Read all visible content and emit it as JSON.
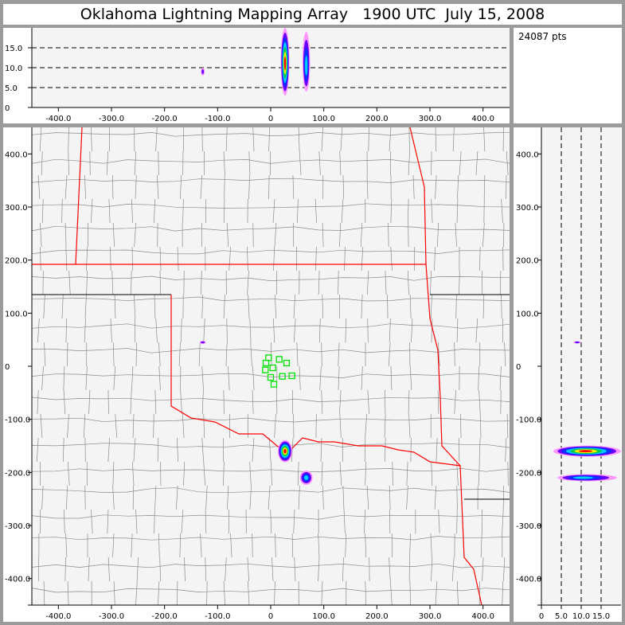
{
  "title": "Oklahoma Lightning Mapping Array   1900 UTC  July 15, 2008",
  "points_label": "24087 pts",
  "chart_data": [
    {
      "type": "scatter",
      "panel": "altitude-vs-east",
      "xlim": [
        -450,
        450
      ],
      "ylim": [
        0,
        20
      ],
      "xticks": [
        "-400.0",
        "-300.0",
        "-200.0",
        "-100.0",
        "0",
        "100.0",
        "200.0",
        "300.0",
        "400.0"
      ],
      "yticks": [
        "0",
        "5.0",
        "10.0",
        "15.0"
      ],
      "grid": "dashed at 5, 10, 15"
    },
    {
      "type": "scatter",
      "panel": "plan-view-map",
      "xlim": [
        -450,
        450
      ],
      "ylim": [
        -450,
        450
      ],
      "xticks": [
        "-400.0",
        "-300.0",
        "-200.0",
        "-100.0",
        "0",
        "100.0",
        "200.0",
        "300.0",
        "400.0"
      ],
      "yticks": [
        "-400.0",
        "-300.0",
        "-200.0",
        "-100.0",
        "0",
        "100.0",
        "200.0",
        "300.0",
        "400.0"
      ],
      "stations": [
        [
          -4,
          16
        ],
        [
          16,
          13
        ],
        [
          30,
          6
        ],
        [
          -9,
          6
        ],
        [
          4,
          -3
        ],
        [
          -10,
          -7
        ],
        [
          22,
          -19
        ],
        [
          40,
          -18
        ],
        [
          0,
          -21
        ],
        [
          6,
          -34
        ]
      ],
      "station_color": "#00e000",
      "border_color": "#ff0000",
      "county_color": "#888888"
    },
    {
      "type": "scatter",
      "panel": "north-vs-altitude",
      "xlim": [
        0,
        20
      ],
      "ylim": [
        -450,
        450
      ],
      "xticks": [
        "0",
        "5.0",
        "10.0",
        "15.0"
      ],
      "yticks": [
        "-400.0",
        "-300.0",
        "-200.0",
        "-100.0",
        "0",
        "100.0",
        "200.0",
        "300.0",
        "400.0"
      ],
      "grid": "dashed at 5, 10, 15"
    }
  ],
  "clusters": [
    {
      "x": 27,
      "y": -160,
      "sx": 9,
      "sy": 14,
      "z": 11,
      "sz": 8,
      "zmin": 3,
      "zmax": 20,
      "intensity": 6
    },
    {
      "x": 67,
      "y": -210,
      "sx": 8,
      "sy": 9,
      "z": 10,
      "sz": 6,
      "zmin": 4,
      "zmax": 19,
      "intensity": 3
    },
    {
      "x": -128,
      "y": 45,
      "sx": 4,
      "sy": 2,
      "z": 9,
      "sz": 1.5,
      "zmin": 8,
      "zmax": 10,
      "intensity": 1
    }
  ],
  "density_colors": [
    "#ff99ff",
    "#6600ff",
    "#0033ff",
    "#00ccff",
    "#00cc44",
    "#ffee00",
    "#ff0000"
  ]
}
